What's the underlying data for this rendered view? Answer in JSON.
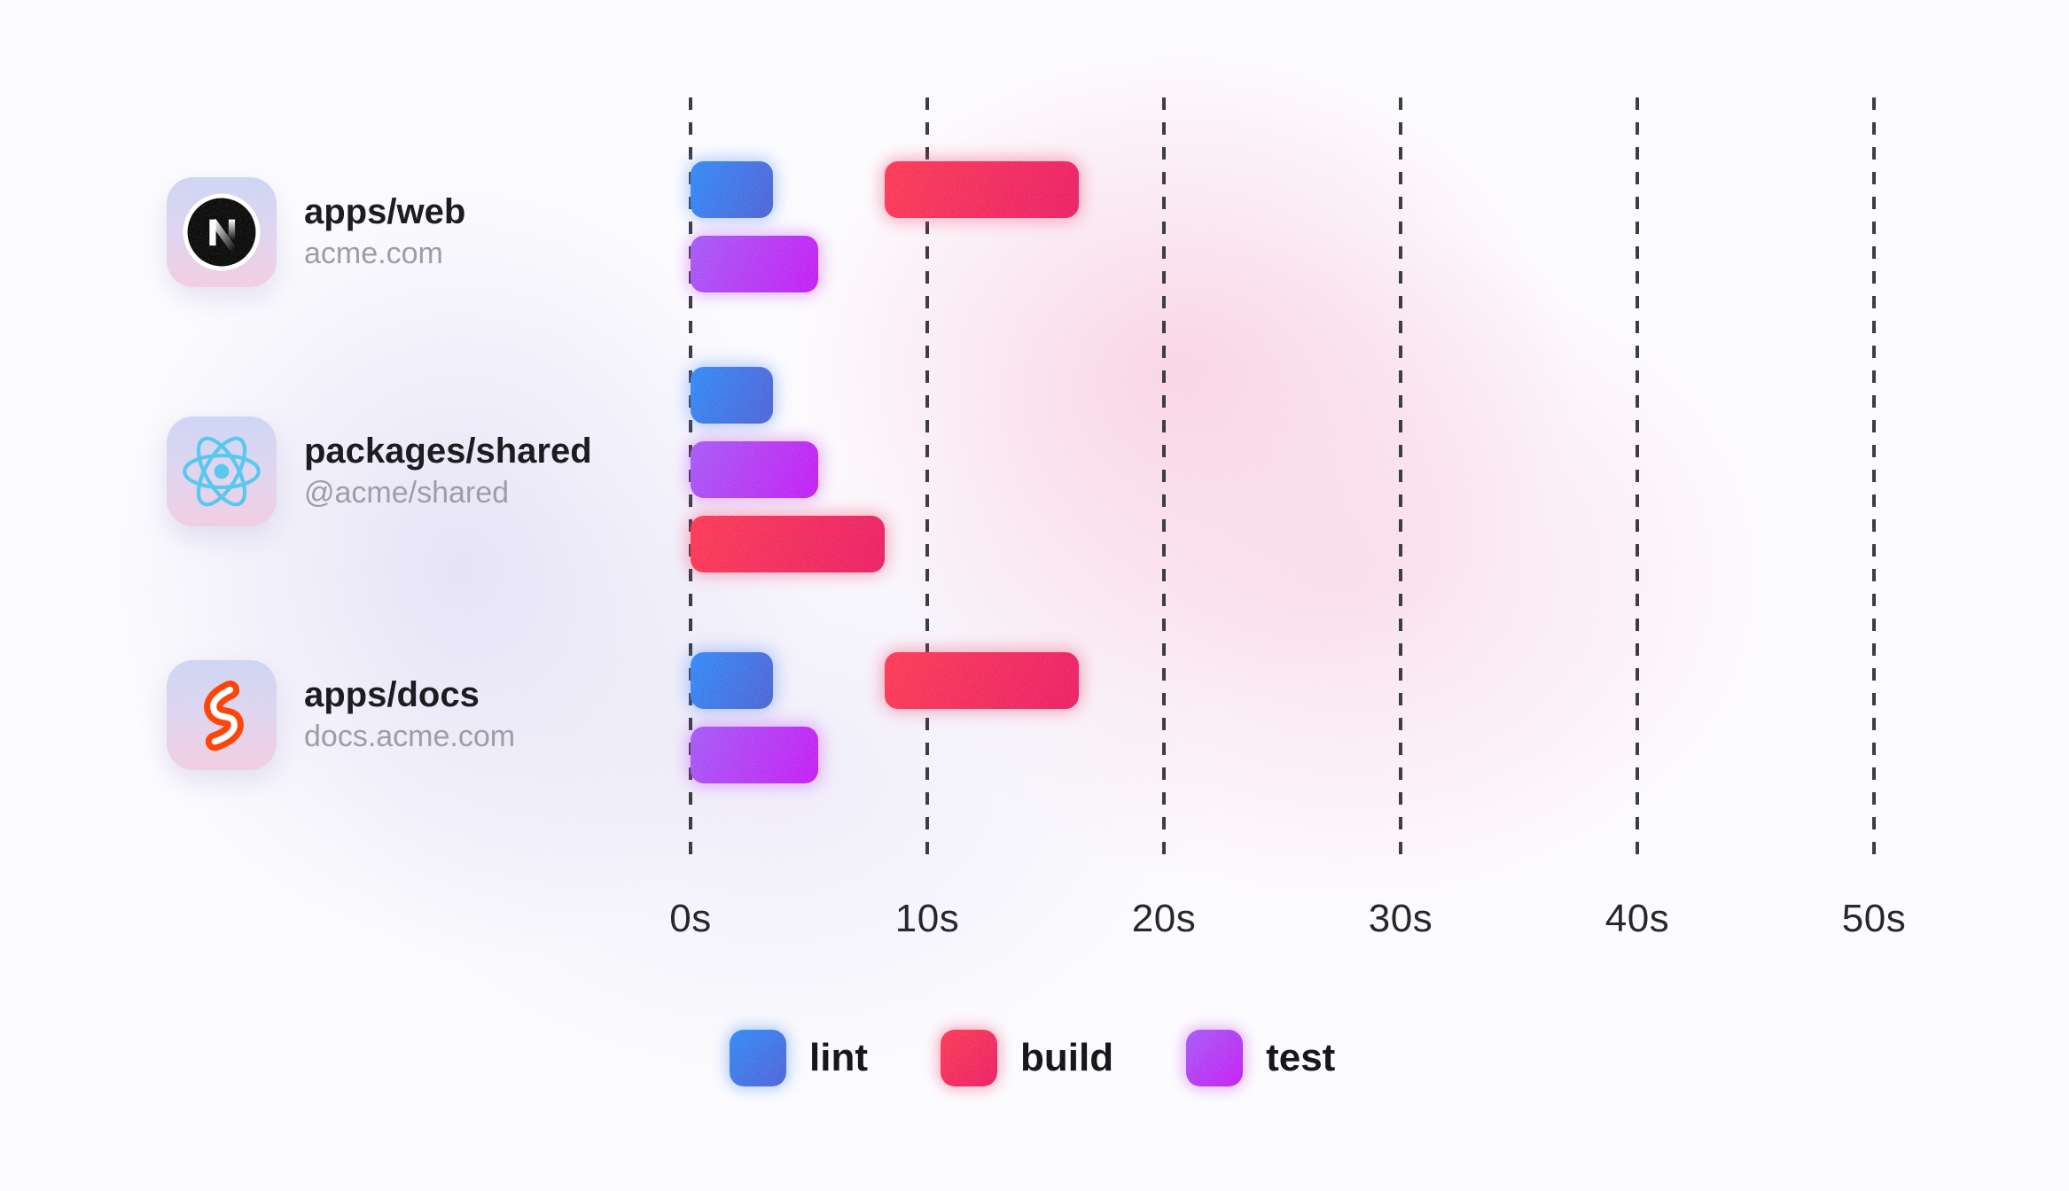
{
  "chart_data": {
    "type": "gantt",
    "unit": "seconds",
    "x_axis": {
      "ticks": [
        "0s",
        "10s",
        "20s",
        "30s",
        "40s",
        "50s"
      ],
      "min_s": 0,
      "max_s": 50,
      "gridlines": "dashed-vertical"
    },
    "legend": [
      {
        "id": "lint",
        "label": "lint",
        "gradient": [
          "#338af7",
          "#4f63d6"
        ]
      },
      {
        "id": "build",
        "label": "build",
        "gradient": [
          "#fb3a55",
          "#ea2066"
        ]
      },
      {
        "id": "test",
        "label": "test",
        "gradient": [
          "#a55bf5",
          "#c41ef3"
        ]
      }
    ],
    "rows": [
      {
        "title": "apps/web",
        "subtitle": "acme.com",
        "icon": "nextjs-logo",
        "tasks": [
          {
            "task": "lint",
            "start_s": 0,
            "end_s": 3.5,
            "lane": 0
          },
          {
            "task": "build",
            "start_s": 8.2,
            "end_s": 16.4,
            "lane": 0
          },
          {
            "task": "test",
            "start_s": 0,
            "end_s": 5.4,
            "lane": 1
          }
        ]
      },
      {
        "title": "packages/shared",
        "subtitle": "@acme/shared",
        "icon": "react-logo",
        "tasks": [
          {
            "task": "lint",
            "start_s": 0,
            "end_s": 3.5,
            "lane": 0
          },
          {
            "task": "test",
            "start_s": 0,
            "end_s": 5.4,
            "lane": 1
          },
          {
            "task": "build",
            "start_s": 0,
            "end_s": 8.2,
            "lane": 2
          }
        ]
      },
      {
        "title": "apps/docs",
        "subtitle": "docs.acme.com",
        "icon": "svelte-logo",
        "tasks": [
          {
            "task": "lint",
            "start_s": 0,
            "end_s": 3.5,
            "lane": 0
          },
          {
            "task": "build",
            "start_s": 8.2,
            "end_s": 16.4,
            "lane": 0
          },
          {
            "task": "test",
            "start_s": 0,
            "end_s": 5.4,
            "lane": 1
          }
        ]
      }
    ],
    "colors": {
      "lint": "#3b82f6",
      "build": "#f43f5e",
      "test": "#b43df2",
      "gridline": "#36363d",
      "title_text": "#141519",
      "subtitle_text": "#9a9aa4"
    }
  }
}
